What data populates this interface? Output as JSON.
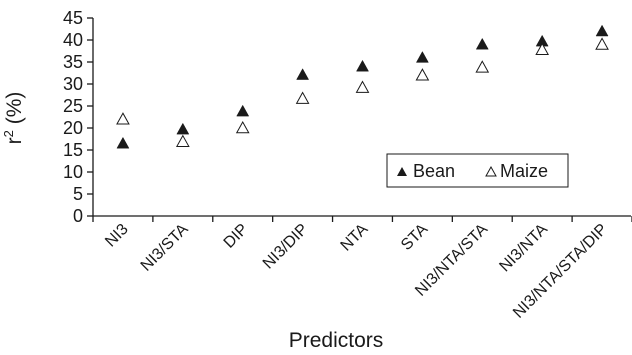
{
  "chart_data": {
    "type": "scatter",
    "categories": [
      "NI3",
      "NI3/STA",
      "DIP",
      "NI3/DIP",
      "NTA",
      "STA",
      "NI3/NTA/STA",
      "NI3/NTA",
      "NI3/NTA/STA/DIP"
    ],
    "series": [
      {
        "name": "Bean",
        "marker": "filled-triangle",
        "values": [
          16.5,
          19.7,
          23.8,
          32.1,
          34.0,
          36.0,
          39.0,
          39.7,
          42.0
        ]
      },
      {
        "name": "Maize",
        "marker": "open-triangle",
        "values": [
          22.0,
          16.9,
          20.0,
          26.7,
          29.2,
          32.0,
          33.8,
          37.8,
          39.0
        ]
      }
    ],
    "xlabel": "Predictors",
    "ylabel": {
      "main": "r",
      "sup": "2",
      "rest": " (%)"
    },
    "ylim": [
      0,
      45
    ],
    "yticks": [
      "0",
      "5",
      "10",
      "15",
      "20",
      "25",
      "30",
      "35",
      "40",
      "45"
    ],
    "grid": false,
    "legend_position": "right-middle",
    "colors": {
      "marker": "#1a1a1a",
      "axis": "#1a1a1a",
      "background": "#ffffff"
    }
  }
}
